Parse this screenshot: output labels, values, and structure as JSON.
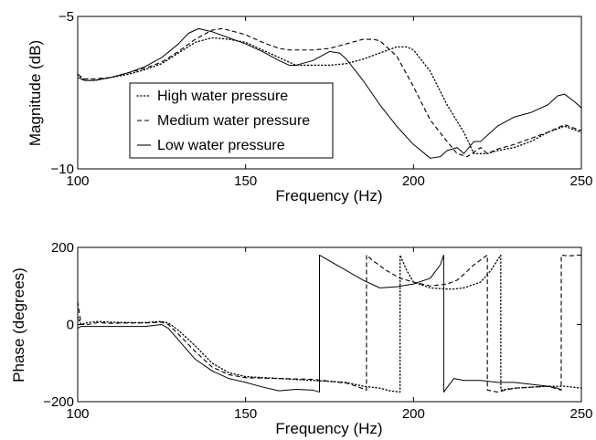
{
  "chart_data": [
    {
      "type": "line",
      "xlabel": "Frequency (Hz)",
      "ylabel": "Magnitude (dB)",
      "xlim": [
        100,
        250
      ],
      "ylim": [
        -10,
        -5
      ],
      "xticks": [
        "100",
        "150",
        "200",
        "250"
      ],
      "yticks": [
        "−5",
        "−10"
      ],
      "grid": false,
      "legend_position": "lower-left",
      "series": [
        {
          "name": "High water pressure",
          "style": "dotted",
          "x": [
            100,
            102,
            105,
            110,
            115,
            120,
            125,
            130,
            135,
            140,
            145,
            150,
            155,
            160,
            163,
            165,
            170,
            175,
            180,
            185,
            190,
            195,
            198,
            200,
            205,
            210,
            215,
            218,
            222,
            225,
            230,
            235,
            240,
            245,
            250
          ],
          "y": [
            -6.9,
            -7.1,
            -7.1,
            -7.0,
            -6.9,
            -6.75,
            -6.55,
            -6.2,
            -5.85,
            -5.7,
            -5.75,
            -5.85,
            -6.1,
            -6.35,
            -6.5,
            -6.6,
            -6.6,
            -6.6,
            -6.55,
            -6.4,
            -6.2,
            -6.0,
            -6.0,
            -6.1,
            -6.8,
            -7.9,
            -8.8,
            -9.5,
            -9.5,
            -9.4,
            -9.3,
            -9.1,
            -8.8,
            -8.6,
            -8.8
          ]
        },
        {
          "name": "Medium water pressure",
          "style": "dashed",
          "x": [
            100,
            102,
            105,
            110,
            115,
            120,
            125,
            130,
            135,
            140,
            143,
            145,
            150,
            155,
            160,
            163,
            165,
            170,
            175,
            180,
            185,
            188,
            190,
            195,
            200,
            205,
            210,
            213,
            216,
            220,
            222,
            225,
            230,
            235,
            240,
            245,
            250
          ],
          "y": [
            -6.9,
            -7.05,
            -7.05,
            -7.0,
            -6.85,
            -6.7,
            -6.5,
            -6.15,
            -5.75,
            -5.45,
            -5.4,
            -5.45,
            -5.6,
            -5.85,
            -6.05,
            -6.1,
            -6.1,
            -6.1,
            -6.05,
            -5.9,
            -5.75,
            -5.75,
            -5.8,
            -6.3,
            -7.3,
            -8.4,
            -9.1,
            -9.5,
            -9.6,
            -9.3,
            -9.5,
            -9.35,
            -9.2,
            -9.0,
            -8.8,
            -8.55,
            -8.75
          ]
        },
        {
          "name": "Low water pressure",
          "style": "solid",
          "x": [
            100,
            102,
            105,
            110,
            115,
            120,
            125,
            130,
            133,
            136,
            140,
            145,
            150,
            155,
            160,
            163,
            165,
            170,
            175,
            178,
            180,
            185,
            190,
            195,
            200,
            205,
            208,
            210,
            213,
            215,
            218,
            220,
            225,
            230,
            235,
            240,
            243,
            245,
            248,
            250
          ],
          "y": [
            -7.0,
            -7.1,
            -7.1,
            -7.0,
            -6.85,
            -6.65,
            -6.35,
            -5.9,
            -5.55,
            -5.4,
            -5.5,
            -5.7,
            -5.9,
            -6.15,
            -6.45,
            -6.6,
            -6.6,
            -6.45,
            -6.15,
            -6.2,
            -6.4,
            -7.1,
            -7.9,
            -8.6,
            -9.2,
            -9.65,
            -9.6,
            -9.4,
            -9.3,
            -9.5,
            -9.1,
            -9.1,
            -8.6,
            -8.3,
            -8.15,
            -7.9,
            -7.6,
            -7.55,
            -7.8,
            -8.0
          ]
        }
      ]
    },
    {
      "type": "line",
      "xlabel": "Frequency (Hz)",
      "ylabel": "Phase (degrees)",
      "xlim": [
        100,
        250
      ],
      "ylim": [
        -200,
        200
      ],
      "xticks": [
        "100",
        "150",
        "200",
        "250"
      ],
      "yticks": [
        "200",
        "0",
        "−200"
      ],
      "grid": false,
      "series": [
        {
          "name": "High water pressure",
          "style": "dotted",
          "x": [
            100,
            101,
            103,
            106,
            110,
            115,
            120,
            125,
            127,
            130,
            135,
            140,
            145,
            150,
            160,
            170,
            180,
            185,
            190,
            193,
            196,
            196.01,
            198,
            200,
            205,
            210,
            212,
            215,
            220,
            223,
            226,
            226.01,
            230,
            240,
            245,
            250
          ],
          "y": [
            20,
            0,
            5,
            8,
            6,
            5,
            5,
            8,
            4,
            -15,
            -55,
            -100,
            -125,
            -135,
            -140,
            -145,
            -150,
            -160,
            -165,
            -172,
            -175,
            180,
            140,
            110,
            95,
            92,
            92,
            95,
            110,
            140,
            180,
            -170,
            -165,
            -160,
            -160,
            -165
          ]
        },
        {
          "name": "Medium water pressure",
          "style": "dashed",
          "x": [
            100,
            101,
            103,
            106,
            110,
            115,
            120,
            125,
            127,
            130,
            135,
            140,
            145,
            150,
            160,
            170,
            180,
            183,
            186,
            186.01,
            188,
            192,
            196,
            200,
            205,
            210,
            213,
            215,
            218,
            222,
            222.01,
            225,
            230,
            240,
            244,
            244.01,
            246,
            250
          ],
          "y": [
            60,
            0,
            0,
            5,
            3,
            4,
            4,
            6,
            0,
            -25,
            -70,
            -110,
            -130,
            -138,
            -140,
            -142,
            -152,
            -160,
            -170,
            180,
            165,
            140,
            120,
            110,
            100,
            105,
            115,
            130,
            155,
            180,
            -170,
            -175,
            -165,
            -160,
            -170,
            180,
            178,
            180
          ]
        },
        {
          "name": "Low water pressure",
          "style": "solid",
          "x": [
            100,
            101,
            103,
            106,
            110,
            115,
            120,
            125,
            127,
            130,
            135,
            140,
            145,
            150,
            155,
            160,
            165,
            170,
            172,
            172.01,
            175,
            180,
            185,
            190,
            195,
            200,
            205,
            208,
            209,
            209.01,
            212,
            215,
            220,
            225,
            230,
            235,
            240,
            243,
            244
          ],
          "y": [
            -10,
            -5,
            -5,
            -5,
            -5,
            -5,
            -5,
            0,
            -10,
            -40,
            -90,
            -120,
            -140,
            -150,
            -162,
            -172,
            -168,
            -170,
            -175,
            180,
            165,
            140,
            115,
            95,
            98,
            105,
            120,
            155,
            180,
            -175,
            -140,
            -145,
            -145,
            -150,
            -150,
            -155,
            -160,
            -165,
            -170
          ]
        }
      ]
    }
  ]
}
